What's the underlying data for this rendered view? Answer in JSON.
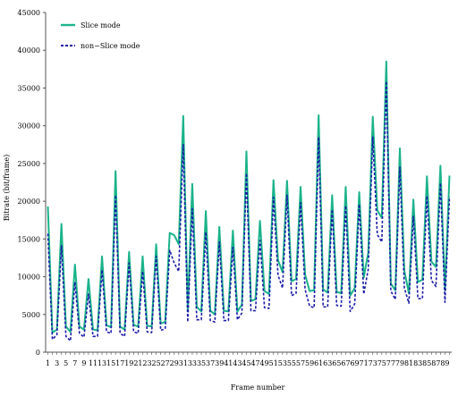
{
  "chart_data": {
    "type": "line",
    "title": "",
    "xlabel": "Frame number",
    "ylabel": "Bitrate (bit/frame)",
    "ylim": [
      0,
      45000
    ],
    "yticks": [
      "0",
      "5000",
      "10000",
      "15000",
      "20000",
      "25000",
      "30000",
      "35000",
      "40000",
      "45000"
    ],
    "x": [
      1,
      2,
      3,
      4,
      5,
      6,
      7,
      8,
      9,
      10,
      11,
      12,
      13,
      14,
      15,
      16,
      17,
      18,
      19,
      20,
      21,
      22,
      23,
      24,
      25,
      26,
      27,
      28,
      29,
      30,
      31,
      32,
      33,
      34,
      35,
      36,
      37,
      38,
      39,
      40,
      41,
      42,
      43,
      44,
      45,
      46,
      47,
      48,
      49,
      50,
      51,
      52,
      53,
      54,
      55,
      56,
      57,
      58,
      59,
      60,
      61,
      62,
      63,
      64,
      65,
      66,
      67,
      68,
      69,
      70,
      71,
      72,
      73,
      74,
      75,
      76,
      77,
      78,
      79,
      80,
      81,
      82,
      83,
      84,
      85,
      86,
      87,
      88,
      89,
      90
    ],
    "xtick_labels": [
      "1",
      "3",
      "5",
      "7",
      "9",
      "11",
      "13",
      "15",
      "17",
      "19",
      "21",
      "23",
      "25",
      "27",
      "29",
      "31",
      "33",
      "35",
      "37",
      "39",
      "41",
      "43",
      "45",
      "47",
      "49",
      "51",
      "53",
      "55",
      "57",
      "59",
      "61",
      "63",
      "65",
      "67",
      "69",
      "71",
      "73",
      "75",
      "77",
      "79",
      "81",
      "83",
      "85",
      "87",
      "89"
    ],
    "legend": "top-left",
    "grid": false,
    "series": [
      {
        "name": "Slice mode",
        "color": "#1bb38a",
        "values": [
          19300,
          2600,
          3000,
          17000,
          3400,
          2700,
          11600,
          3400,
          3000,
          9700,
          3000,
          2900,
          12700,
          3600,
          3300,
          24000,
          3400,
          3000,
          13300,
          3600,
          3400,
          12700,
          3500,
          3400,
          14300,
          3800,
          4000,
          15800,
          15500,
          14300,
          31300,
          5600,
          22300,
          6000,
          5400,
          18700,
          5500,
          5000,
          16600,
          5500,
          5400,
          16100,
          5400,
          6300,
          26600,
          6800,
          7000,
          17400,
          8100,
          7700,
          22800,
          12200,
          10600,
          22700,
          9400,
          9700,
          21900,
          10300,
          8100,
          8200,
          31400,
          8300,
          7900,
          20800,
          8000,
          7800,
          21900,
          7500,
          8500,
          21200,
          9900,
          13200,
          31200,
          18800,
          17800,
          38500,
          9100,
          8200,
          27000,
          10800,
          7800,
          20200,
          9300,
          9600,
          23300,
          12000,
          11300,
          24700,
          8200,
          23400
        ]
      },
      {
        "name": "non−Slice mode",
        "color": "#1a1aa8",
        "values": [
          15700,
          1700,
          2300,
          14100,
          2100,
          1500,
          9300,
          2500,
          2000,
          7700,
          2100,
          2100,
          10900,
          2700,
          2500,
          20800,
          2500,
          2100,
          11800,
          2700,
          2500,
          10700,
          2700,
          2600,
          12700,
          2900,
          3100,
          13500,
          11800,
          10700,
          27500,
          4000,
          19000,
          4300,
          4300,
          15900,
          4200,
          4000,
          14600,
          4200,
          4200,
          13900,
          4300,
          5200,
          23700,
          5500,
          5500,
          14800,
          5900,
          5800,
          20500,
          10200,
          8500,
          20800,
          7500,
          7800,
          19800,
          8300,
          6100,
          5900,
          28500,
          6000,
          6000,
          18900,
          6200,
          6100,
          19400,
          5400,
          6400,
          19600,
          7700,
          11000,
          28500,
          15600,
          14600,
          35900,
          8100,
          7000,
          24500,
          8500,
          6500,
          18000,
          7100,
          7100,
          20700,
          9500,
          8700,
          22400,
          6600,
          20600
        ]
      }
    ]
  }
}
